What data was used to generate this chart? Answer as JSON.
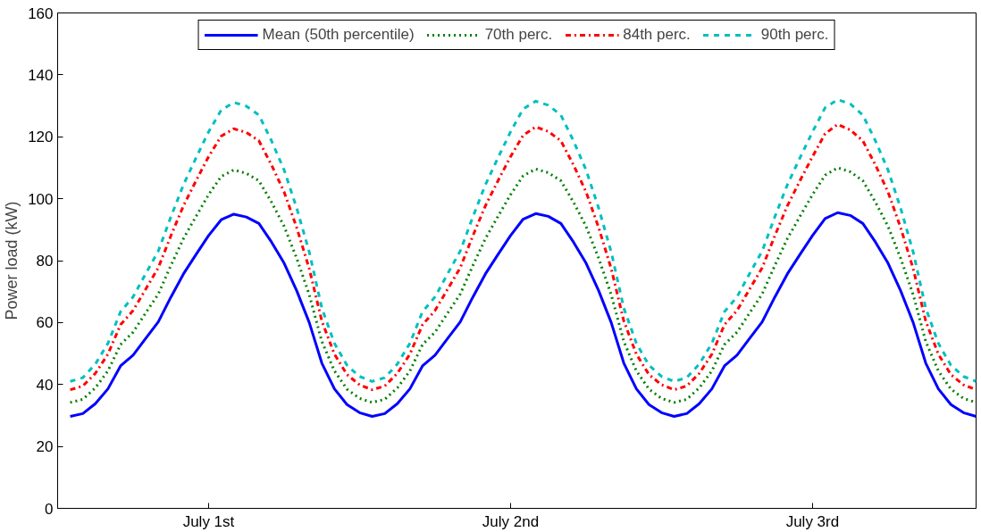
{
  "chart_data": {
    "type": "line",
    "ylabel": "Power load (kW)",
    "categories": [
      null,
      null,
      null,
      null,
      null,
      null,
      null,
      null,
      null,
      null,
      null,
      "July 1st",
      null,
      null,
      null,
      null,
      null,
      null,
      null,
      null,
      null,
      null,
      null,
      null,
      null,
      null,
      null,
      null,
      null,
      null,
      null,
      null,
      null,
      null,
      null,
      "July 2nd",
      null,
      null,
      null,
      null,
      null,
      null,
      null,
      null,
      null,
      null,
      null,
      null,
      null,
      null,
      null,
      null,
      null,
      null,
      null,
      null,
      null,
      null,
      null,
      "July 3rd",
      null,
      null,
      null,
      null,
      null,
      null,
      null,
      null,
      null,
      null,
      null,
      null,
      null
    ],
    "ylim": [
      0,
      160
    ],
    "yticks": [
      0,
      20,
      40,
      60,
      80,
      100,
      120,
      140,
      160
    ],
    "grid": false,
    "legend": "top",
    "series": [
      {
        "name": "Mean (50th percentile)",
        "color": "#0000ff",
        "line_style": "solid",
        "values": [
          29.7,
          30.6,
          33.8,
          38.6,
          46,
          49.5,
          54.9,
          60.2,
          68.2,
          75.7,
          82,
          88.1,
          93.2,
          95,
          94.1,
          92,
          86,
          79.2,
          70.3,
          60,
          46.9,
          38.6,
          33.5,
          30.9,
          29.7,
          30.6,
          33.8,
          38.6,
          46,
          49.5,
          54.9,
          60.2,
          68.2,
          75.7,
          82,
          88.1,
          93.4,
          95.2,
          94.3,
          92,
          86,
          79.2,
          70.3,
          60,
          46.9,
          38.6,
          33.5,
          30.9,
          29.7,
          30.6,
          33.8,
          38.6,
          46,
          49.5,
          54.9,
          60.2,
          68.2,
          75.7,
          82,
          88.1,
          93.6,
          95.5,
          94.6,
          92,
          86,
          79.2,
          70.3,
          60,
          46.9,
          38.6,
          33.5,
          30.9,
          29.7
        ]
      },
      {
        "name": "70th perc.",
        "color": "#008000",
        "line_style": "dotted",
        "values": [
          34.2,
          35.2,
          38.9,
          44.4,
          52.9,
          56.9,
          63.1,
          69.2,
          78.4,
          87.1,
          94.3,
          101.3,
          107.2,
          109.3,
          108.2,
          105.8,
          98.9,
          91.1,
          80.8,
          69,
          53.9,
          44.4,
          38.5,
          35.5,
          34.2,
          35.2,
          38.9,
          44.4,
          52.9,
          56.9,
          63.1,
          69.2,
          78.4,
          87.1,
          94.3,
          101.3,
          107.4,
          109.6,
          108.4,
          105.8,
          98.9,
          91.1,
          80.8,
          69,
          53.9,
          44.4,
          38.5,
          35.5,
          34.2,
          35.2,
          38.9,
          44.4,
          52.9,
          56.9,
          63.1,
          69.2,
          78.4,
          87.1,
          94.3,
          101.3,
          107.6,
          110,
          108.7,
          105.8,
          98.9,
          91.1,
          80.8,
          69,
          53.9,
          44.4,
          38.5,
          35.5,
          34.2
        ]
      },
      {
        "name": "84th perc.",
        "color": "#ff0000",
        "line_style": "dashdot",
        "values": [
          38.3,
          39.5,
          43.6,
          49.8,
          59.3,
          63.9,
          70.8,
          77.7,
          88,
          97.7,
          105.8,
          113.6,
          120.2,
          122.6,
          121.4,
          118.7,
          110.9,
          102.2,
          90.7,
          77.4,
          60.5,
          49.8,
          43.2,
          39.9,
          38.3,
          39.5,
          43.6,
          49.8,
          59.3,
          63.9,
          70.8,
          77.7,
          88,
          97.7,
          105.8,
          113.6,
          120.5,
          123.2,
          121.7,
          118.7,
          110.9,
          102.2,
          90.7,
          77.4,
          60.5,
          49.8,
          43.2,
          39.9,
          38.3,
          39.5,
          43.6,
          49.8,
          59.3,
          63.9,
          70.8,
          77.7,
          88,
          97.7,
          105.8,
          113.6,
          121,
          124,
          122.2,
          118.7,
          110.9,
          102.2,
          90.7,
          77.4,
          60.5,
          49.8,
          43.2,
          39.9,
          38.3
        ]
      },
      {
        "name": "90th perc.",
        "color": "#00bfbf",
        "line_style": "dashed",
        "values": [
          41,
          42.2,
          46.6,
          53.3,
          63.5,
          68.3,
          75.8,
          83.1,
          94.1,
          104.5,
          113.2,
          121.6,
          128.6,
          131.1,
          129.9,
          127,
          118.7,
          109.3,
          97,
          82.8,
          64.7,
          53.3,
          46.2,
          42.6,
          41,
          42.2,
          46.6,
          53.3,
          63.5,
          68.3,
          75.8,
          83.1,
          94.1,
          104.5,
          113.2,
          121.6,
          129,
          131.5,
          130.2,
          127,
          118.7,
          109.3,
          97,
          82.8,
          64.7,
          53.3,
          46.2,
          42.6,
          41,
          42.2,
          46.6,
          53.3,
          63.5,
          68.3,
          75.8,
          83.1,
          94.1,
          104.5,
          113.2,
          121.6,
          129.4,
          132,
          130.6,
          127,
          118.7,
          109.3,
          97,
          82.8,
          64.7,
          53.3,
          46.2,
          42.6,
          41
        ]
      }
    ]
  }
}
